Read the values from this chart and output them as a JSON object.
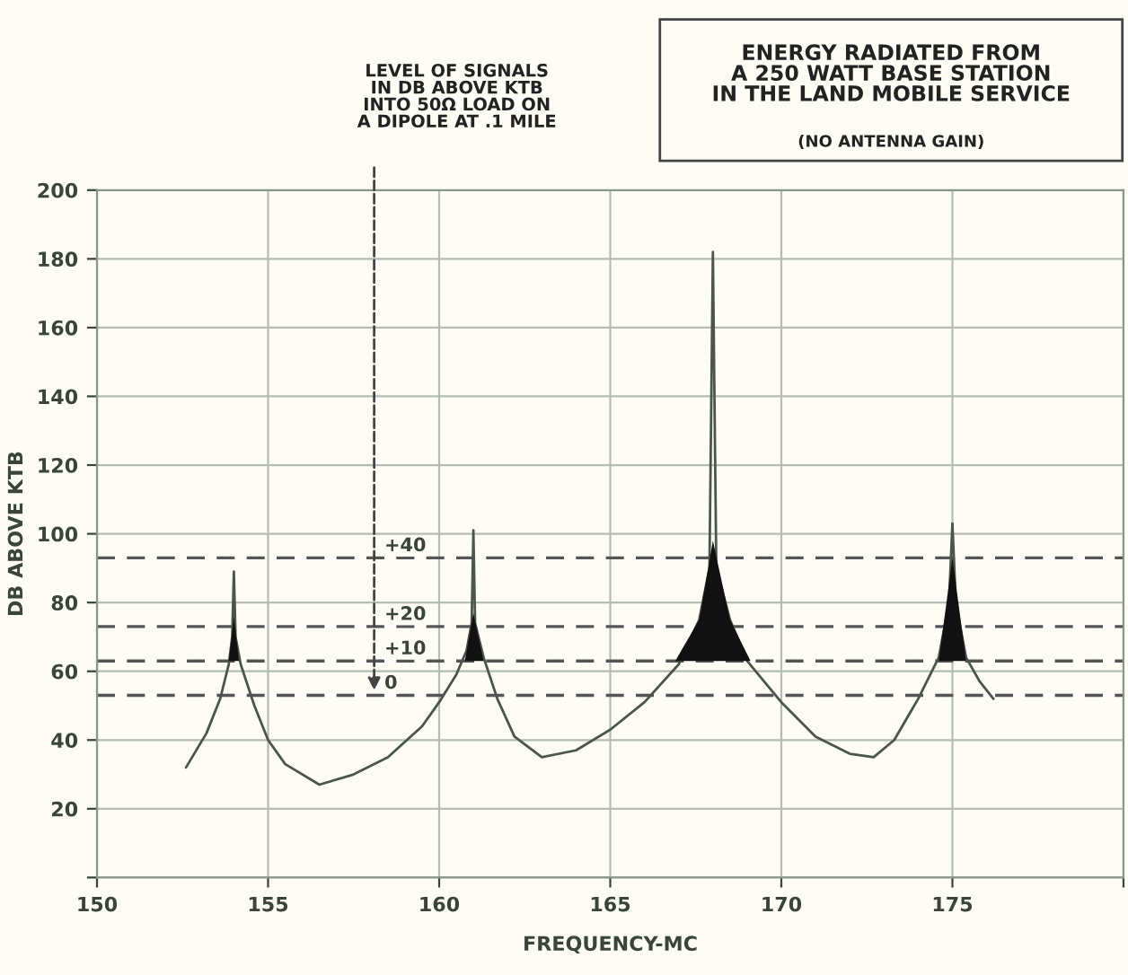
{
  "chart_data": {
    "type": "area",
    "title": "ENERGY RADIATED FROM\nA 250 WATT BASE STATION\nIN THE LAND MOBILE SERVICE",
    "subtitle": "(NO ANTENNA GAIN)",
    "xlabel": "FREQUENCY-MC",
    "ylabel": "DB ABOVE KTB",
    "annotations": [
      "LEVEL OF SIGNALS\nIN DB ABOVE KTB\nINTO 50Ω LOAD ON\nA DIPOLE AT .1 MILE",
      {
        "text": "+40",
        "y": 93
      },
      {
        "text": "+20",
        "y": 73
      },
      {
        "text": "+10",
        "y": 63
      },
      {
        "text": "0",
        "y": 53
      }
    ],
    "series": [
      {
        "type": "line",
        "color": "#4a564a",
        "x": [
          152.6,
          153.2,
          153.6,
          153.85,
          153.95,
          154.0,
          154.05,
          154.2,
          154.6,
          155,
          155.5,
          156.5,
          157.5,
          158.5,
          159.5,
          160,
          160.5,
          160.8,
          160.95,
          161.0,
          161.05,
          161.3,
          161.7,
          162.2,
          163,
          164,
          165,
          166,
          167,
          167.6,
          167.9,
          168.0,
          168.1,
          168.5,
          169,
          170,
          171,
          172,
          172.7,
          173.3,
          174,
          174.6,
          174.9,
          175.0,
          175.1,
          175.4,
          175.8,
          176.2
        ],
        "values": [
          32,
          42,
          52,
          62,
          70,
          89,
          70,
          62,
          50,
          40,
          33,
          27,
          30,
          35,
          44,
          51,
          59,
          66,
          74,
          101,
          74,
          64,
          52,
          41,
          35,
          37,
          43,
          51,
          62,
          75,
          90,
          182,
          90,
          75,
          63,
          51,
          41,
          36,
          35,
          40,
          52,
          64,
          80,
          103,
          80,
          64,
          57,
          52
        ]
      },
      {
        "color": "#111111",
        "x": [
          153.85,
          154.0,
          154.15
        ],
        "values": [
          63,
          76,
          63
        ]
      },
      {
        "color": "#111111",
        "x": [
          160.75,
          161.0,
          161.3
        ],
        "values": [
          63,
          77,
          63
        ]
      },
      {
        "color": "#111111",
        "x": [
          166.9,
          167.6,
          168.0,
          168.5,
          169.1
        ],
        "values": [
          63,
          75,
          98,
          75,
          63
        ]
      },
      {
        "color": "#111111",
        "x": [
          174.6,
          175.0,
          175.4
        ],
        "values": [
          63,
          93,
          63
        ]
      }
    ],
    "ref_lines": [
      {
        "axis": "y",
        "value": 93,
        "color": "#555555",
        "line_style": "dashed"
      },
      {
        "axis": "y",
        "value": 73,
        "color": "#555555",
        "line_style": "dashed"
      },
      {
        "axis": "y",
        "value": 63,
        "color": "#555555",
        "line_style": "dashed"
      },
      {
        "axis": "y",
        "value": 53,
        "color": "#555555",
        "line_style": "dashed"
      }
    ],
    "xlim": [
      150,
      180
    ],
    "ylim": [
      0,
      200
    ],
    "xticks": [
      150,
      155,
      160,
      165,
      170,
      175,
      {
        "value": 180,
        "label": null
      }
    ],
    "yticks": [
      {
        "value": 0,
        "label": null
      },
      20,
      40,
      60,
      80,
      100,
      120,
      140,
      160,
      180,
      200
    ],
    "grid": true,
    "legend": false,
    "marker": "none",
    "line_style": "solid"
  }
}
